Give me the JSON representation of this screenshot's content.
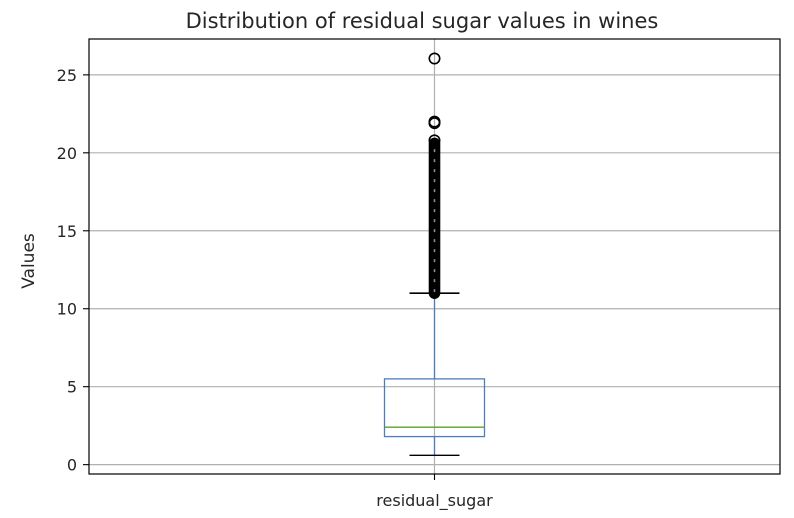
{
  "chart_data": {
    "type": "box",
    "title": "Distribution of residual sugar values in wines",
    "xlabel": "",
    "ylabel": "Values",
    "categories": [
      "residual_sugar"
    ],
    "ylim": [
      -0.6,
      27.3
    ],
    "yticks": [
      0,
      5,
      10,
      15,
      20,
      25
    ],
    "grid": true,
    "legend": "none",
    "box": {
      "whisker_low": 0.6,
      "q1": 1.8,
      "median": 2.4,
      "q3": 5.5,
      "whisker_high": 11.0
    },
    "outliers_band": [
      11.0,
      20.6
    ],
    "outliers": [
      20.8,
      21.9,
      22.0,
      26.05
    ],
    "colors": {
      "box": "#4c7ebd",
      "median": "#5aa02c",
      "whisker": "#4c7ebd",
      "caps": "#000000",
      "grid": "#b0b0b0",
      "outlier": "#000000"
    }
  }
}
